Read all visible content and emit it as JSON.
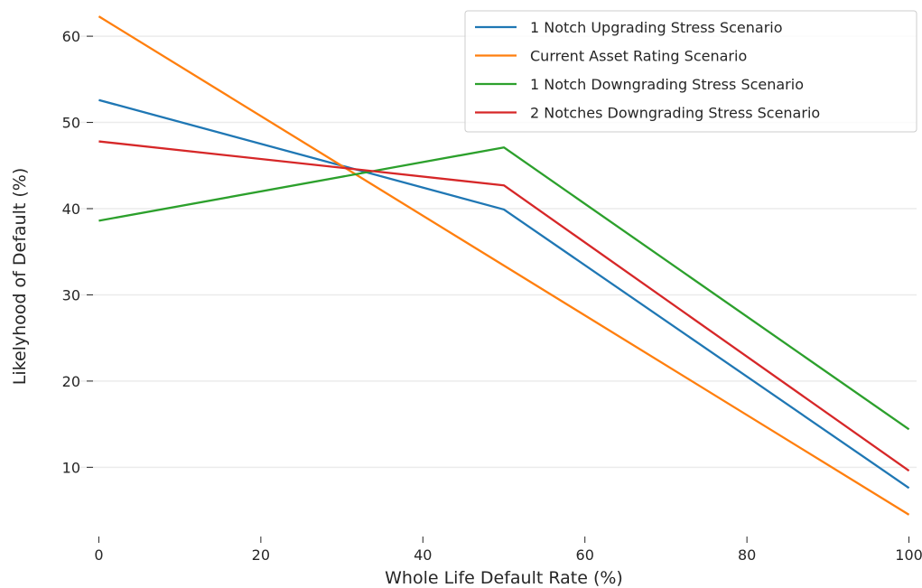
{
  "chart_data": {
    "type": "line",
    "xlabel": "Whole Life Default Rate (%)",
    "ylabel": "Likelyhood of Default (%)",
    "x": [
      0,
      50,
      100
    ],
    "xlim": [
      -2.5,
      102.5
    ],
    "ylim": [
      2.6,
      64.2
    ],
    "xticks": [
      0,
      20,
      40,
      60,
      80,
      100
    ],
    "yticks": [
      10,
      20,
      30,
      40,
      50,
      60
    ],
    "grid": "horizontal",
    "legend_position": "top-right",
    "series": [
      {
        "name": "1 Notch Upgrading Stress Scenario",
        "color": "#1f77b4",
        "values": [
          52.6,
          39.9,
          7.6
        ]
      },
      {
        "name": "Current Asset Rating Scenario",
        "color": "#ff7f0e",
        "values": [
          62.3,
          33.4,
          4.5
        ]
      },
      {
        "name": "1 Notch Downgrading Stress Scenario",
        "color": "#2ca02c",
        "values": [
          38.6,
          47.1,
          14.4
        ]
      },
      {
        "name": "2 Notches Downgrading Stress Scenario",
        "color": "#d62728",
        "values": [
          47.8,
          42.7,
          9.6
        ]
      }
    ]
  }
}
